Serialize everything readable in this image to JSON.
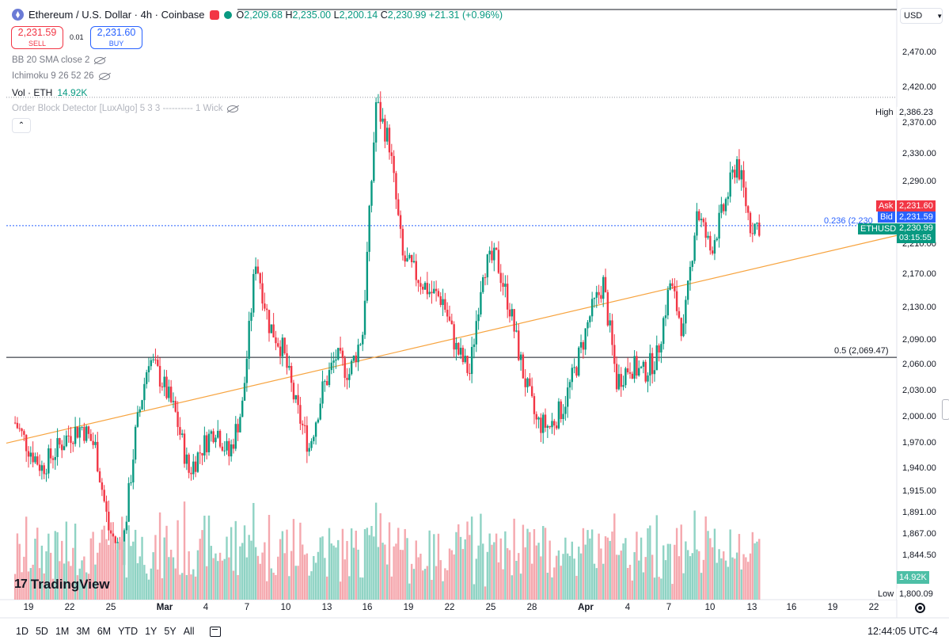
{
  "header": {
    "title": "Ethereum / U.S. Dollar · 4h · Coinbase",
    "ohlc": {
      "o_label": "O",
      "o": "2,209.68",
      "h_label": "H",
      "h": "2,235.00",
      "l_label": "L",
      "l": "2,200.14",
      "c_label": "C",
      "c": "2,230.99",
      "change": "+21.31 (+0.96%)"
    },
    "sell_price": "2,231.59",
    "sell_label": "SELL",
    "buy_price": "2,231.60",
    "buy_label": "BUY",
    "spread": "0.01"
  },
  "indicators": {
    "bb": "BB 20 SMA close 2",
    "ichimoku": "Ichimoku 9 26 52 26",
    "vol_label": "Vol · ETH",
    "vol_value": "14.92K",
    "order_block": "Order Block Detector [LuxAlgo] 5 3 3 ---------- 1 Wick"
  },
  "currency": "USD",
  "price_axis": {
    "ticks": [
      "2,470.00",
      "2,420.00",
      "2,370.00",
      "2,330.00",
      "2,290.00",
      "2,210.00",
      "2,170.00",
      "2,130.00",
      "2,090.00",
      "2,060.00",
      "2,030.00",
      "2,000.00",
      "1,970.00",
      "1,940.00",
      "1,915.00",
      "1,891.00",
      "1,867.00",
      "1,844.50"
    ],
    "high_label": "High",
    "high_value": "2,386.23",
    "low_label": "Low",
    "low_value": "1,800.09",
    "ask_label": "Ask",
    "ask_value": "2,231.60",
    "bid_label": "Bid",
    "bid_value": "2,231.59",
    "symbol_tag": "ETHUSD",
    "last_value": "2,230.99",
    "countdown": "03:15:55",
    "vol_tag": "14.92K"
  },
  "fib": {
    "level_236": "0.236 (2,230",
    "level_5": "0.5 (2,069.47)"
  },
  "time_axis": {
    "labels": [
      {
        "t": "19",
        "bold": false
      },
      {
        "t": "22",
        "bold": false
      },
      {
        "t": "25",
        "bold": false
      },
      {
        "t": "Mar",
        "bold": true
      },
      {
        "t": "4",
        "bold": false
      },
      {
        "t": "7",
        "bold": false
      },
      {
        "t": "10",
        "bold": false
      },
      {
        "t": "13",
        "bold": false
      },
      {
        "t": "16",
        "bold": false
      },
      {
        "t": "19",
        "bold": false
      },
      {
        "t": "22",
        "bold": false
      },
      {
        "t": "25",
        "bold": false
      },
      {
        "t": "28",
        "bold": false
      },
      {
        "t": "Apr",
        "bold": true
      },
      {
        "t": "4",
        "bold": false
      },
      {
        "t": "7",
        "bold": false
      },
      {
        "t": "10",
        "bold": false
      },
      {
        "t": "13",
        "bold": false
      },
      {
        "t": "16",
        "bold": false
      },
      {
        "t": "19",
        "bold": false
      },
      {
        "t": "22",
        "bold": false
      }
    ]
  },
  "bottom_bar": {
    "ranges": [
      "1D",
      "5D",
      "1M",
      "3M",
      "6M",
      "YTD",
      "1Y",
      "5Y",
      "All"
    ],
    "clock": "12:44:05 UTC-4"
  },
  "branding": "TradingView",
  "colors": {
    "up": "#089981",
    "down": "#f23645",
    "trendline": "#f7a440",
    "fib": "#2962ff",
    "level": "#131722"
  },
  "chart_data": {
    "type": "candlestick",
    "symbol": "ETHUSD",
    "interval": "4h",
    "x_start": "2024-02-18",
    "x_end": "2024-04-13",
    "ohlc_approx": [
      [
        "2024-02-18",
        1990
      ],
      [
        "2024-02-19",
        1960
      ],
      [
        "2024-02-20",
        1935
      ],
      [
        "2024-02-21",
        1955
      ],
      [
        "2024-02-22",
        1975
      ],
      [
        "2024-02-23",
        1985
      ],
      [
        "2024-02-24",
        1960
      ],
      [
        "2024-02-25",
        1860
      ],
      [
        "2024-02-26",
        1830
      ],
      [
        "2024-02-27",
        1975
      ],
      [
        "2024-02-28",
        2070
      ],
      [
        "2024-02-29",
        2040
      ],
      [
        "2024-03-01",
        2000
      ],
      [
        "2024-03-02",
        1930
      ],
      [
        "2024-03-03",
        1960
      ],
      [
        "2024-03-04",
        1985
      ],
      [
        "2024-03-05",
        1950
      ],
      [
        "2024-03-06",
        2010
      ],
      [
        "2024-03-07",
        2190
      ],
      [
        "2024-03-08",
        2110
      ],
      [
        "2024-03-09",
        2080
      ],
      [
        "2024-03-10",
        2010
      ],
      [
        "2024-03-11",
        1960
      ],
      [
        "2024-03-12",
        2030
      ],
      [
        "2024-03-13",
        2070
      ],
      [
        "2024-03-14",
        2050
      ],
      [
        "2024-03-15",
        2100
      ],
      [
        "2024-03-16",
        2380
      ],
      [
        "2024-03-17",
        2330
      ],
      [
        "2024-03-18",
        2190
      ],
      [
        "2024-03-19",
        2170
      ],
      [
        "2024-03-20",
        2150
      ],
      [
        "2024-03-21",
        2140
      ],
      [
        "2024-03-22",
        2080
      ],
      [
        "2024-03-23",
        2050
      ],
      [
        "2024-03-24",
        2180
      ],
      [
        "2024-03-25",
        2190
      ],
      [
        "2024-03-26",
        2130
      ],
      [
        "2024-03-27",
        2050
      ],
      [
        "2024-03-28",
        1990
      ],
      [
        "2024-03-29",
        1985
      ],
      [
        "2024-03-30",
        2010
      ],
      [
        "2024-03-31",
        2060
      ],
      [
        "2024-04-01",
        2120
      ],
      [
        "2024-04-02",
        2160
      ],
      [
        "2024-04-03",
        2040
      ],
      [
        "2024-04-04",
        2060
      ],
      [
        "2024-04-05",
        2050
      ],
      [
        "2024-04-06",
        2070
      ],
      [
        "2024-04-07",
        2160
      ],
      [
        "2024-04-08",
        2100
      ],
      [
        "2024-04-09",
        2250
      ],
      [
        "2024-04-10",
        2200
      ],
      [
        "2024-04-11",
        2250
      ],
      [
        "2024-04-12",
        2310
      ],
      [
        "2024-04-13",
        2231
      ]
    ],
    "high": 2386.23,
    "low": 1800.09,
    "last": 2230.99,
    "fib_levels": [
      {
        "level": 0.236,
        "price": 2230
      },
      {
        "level": 0.5,
        "price": 2069.47
      }
    ],
    "trendline": {
      "from": [
        "2024-02-18",
        1965
      ],
      "to": [
        "2024-04-20",
        2218
      ]
    },
    "volume_last": "14.92K",
    "y_range": [
      1800,
      2500
    ]
  }
}
